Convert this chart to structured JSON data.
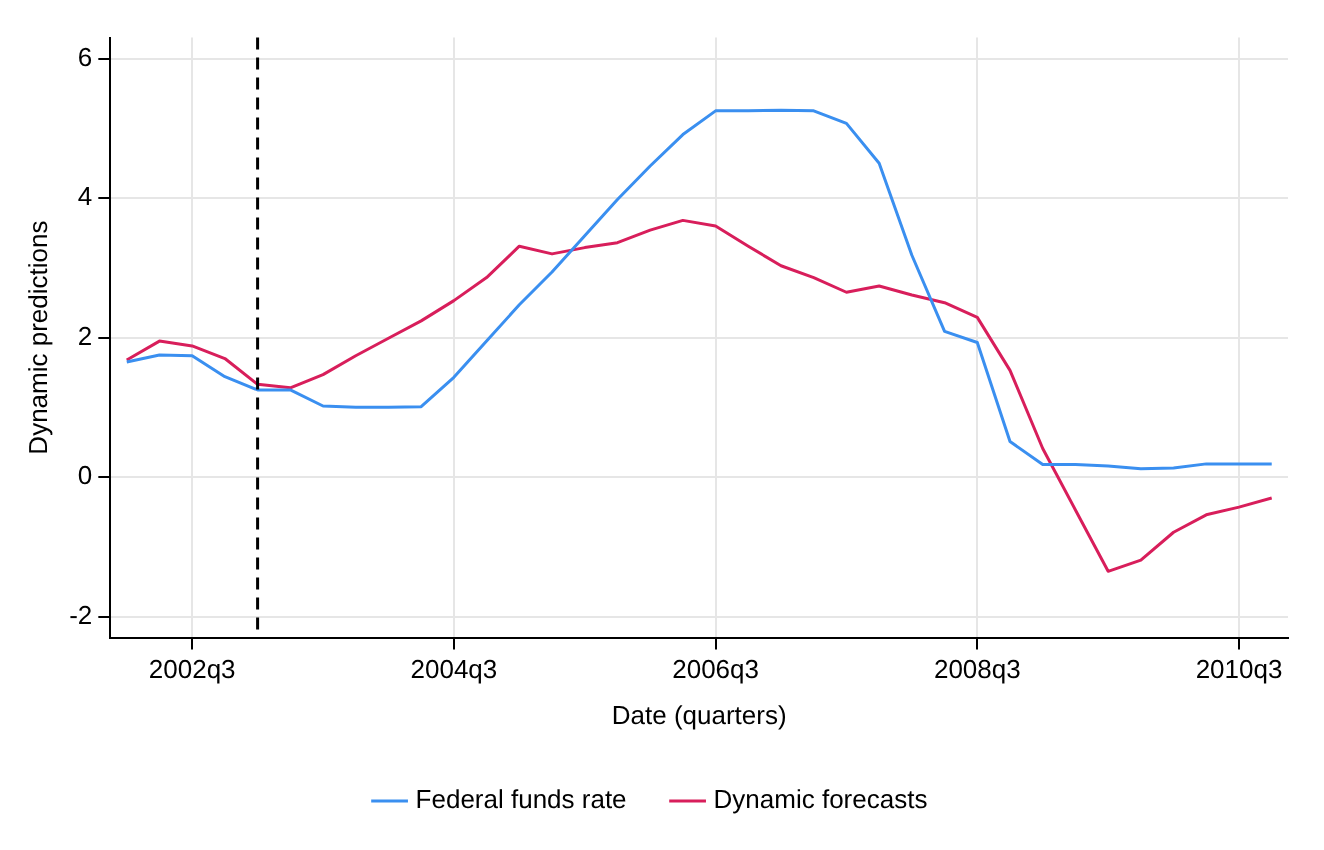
{
  "chart_data": {
    "type": "line",
    "xlabel": "Date (quarters)",
    "ylabel": "Dynamic predictions",
    "x": [
      "2002-01",
      "2002-04",
      "2002-07",
      "2002-10",
      "2003-01",
      "2003-04",
      "2003-07",
      "2003-10",
      "2004-01",
      "2004-04",
      "2004-07",
      "2004-10",
      "2005-01",
      "2005-04",
      "2005-07",
      "2005-10",
      "2006-01",
      "2006-04",
      "2006-07",
      "2006-10",
      "2007-01",
      "2007-04",
      "2007-07",
      "2007-10",
      "2008-01",
      "2008-04",
      "2008-07",
      "2008-10",
      "2009-01",
      "2009-04",
      "2009-07",
      "2009-10",
      "2010-01",
      "2010-04",
      "2010-07",
      "2010-10"
    ],
    "series": [
      {
        "name": "Federal funds rate",
        "color": "#3a8ff0",
        "values": [
          1.65,
          1.75,
          1.74,
          1.44,
          1.25,
          1.25,
          1.02,
          1.0,
          1.0,
          1.01,
          1.43,
          1.95,
          2.47,
          2.94,
          3.46,
          3.98,
          4.46,
          4.91,
          5.25,
          5.25,
          5.26,
          5.25,
          5.07,
          4.5,
          3.18,
          2.09,
          1.93,
          0.51,
          0.18,
          0.18,
          0.16,
          0.12,
          0.13,
          0.19,
          0.19,
          0.19
        ]
      },
      {
        "name": "Dynamic forecasts",
        "color": "#d81e5b",
        "values": [
          1.68,
          1.95,
          1.88,
          1.7,
          1.33,
          1.28,
          1.47,
          1.74,
          1.99,
          2.24,
          2.53,
          2.86,
          3.31,
          3.2,
          3.29,
          3.36,
          3.54,
          3.68,
          3.6,
          3.31,
          3.03,
          2.86,
          2.65,
          2.74,
          2.61,
          2.5,
          2.29,
          1.53,
          0.41,
          -0.47,
          -1.35,
          -1.19,
          -0.79,
          -0.54,
          -0.43,
          -0.3
        ]
      }
    ],
    "xlim": [
      "2001-11-16",
      "2010-11-16"
    ],
    "xticks": [
      {
        "value": "2002-07",
        "label": "2002q3"
      },
      {
        "value": "2004-07",
        "label": "2004q3"
      },
      {
        "value": "2006-07",
        "label": "2006q3"
      },
      {
        "value": "2008-07",
        "label": "2008q3"
      },
      {
        "value": "2010-07",
        "label": "2010q3"
      }
    ],
    "ylim": [
      -2.3,
      6.3
    ],
    "yticks": [
      -2,
      0,
      2,
      4,
      6
    ],
    "ref_lines": [
      {
        "axis": "x",
        "value": "2003-01",
        "color": "#000000",
        "line_style": "dashed"
      }
    ],
    "grid": true,
    "legend": "bottom",
    "marker": "none",
    "line_style": "solid"
  }
}
